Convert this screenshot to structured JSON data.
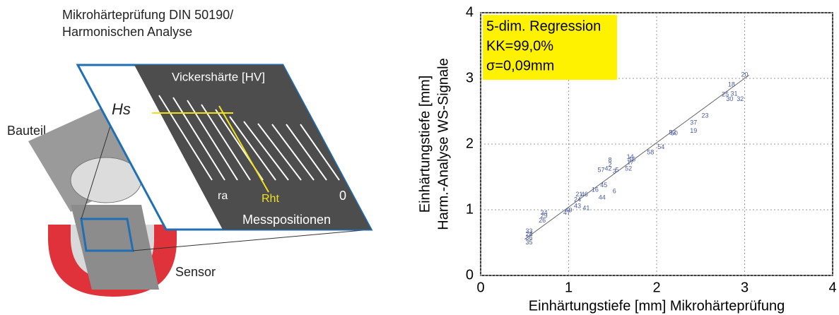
{
  "diagram": {
    "title_lines": [
      "Mikrohärteprüfung DIN 50190/",
      "Harmonischen Analyse"
    ],
    "part_label": "Bauteil",
    "sensor_label": "Sensor",
    "hardness_label": "Vickershärte [HV]",
    "hs_label": "Hs",
    "ra_label": "ra",
    "rht_label": "Rht",
    "zero_label": "0",
    "positions_label": "Messpositionen"
  },
  "chart_data": {
    "type": "scatter",
    "xlabel": "Einhärtungstiefe [mm] Mikrohärteprüfung",
    "ylabel_lines": [
      "Einhärtungstiefe [mm]",
      "Harm.-Analyse WS-Signale"
    ],
    "annotation_lines": [
      "5-dim. Regression",
      "KK=99,0%",
      "σ=0,09mm"
    ],
    "xlim": [
      0,
      4
    ],
    "ylim": [
      0,
      4
    ],
    "xticks": [
      0,
      1,
      2,
      3,
      4
    ],
    "yticks": [
      0,
      1,
      2,
      3,
      4
    ],
    "grid": true,
    "color": "#4a5aa0",
    "x": [
      3.0,
      2.85,
      2.78,
      2.88,
      2.83,
      2.95,
      2.55,
      2.42,
      2.42,
      2.18,
      2.2,
      2.05,
      1.93,
      1.7,
      1.7,
      1.72,
      1.68,
      1.47,
      1.47,
      1.37,
      1.45,
      1.52,
      1.55,
      1.4,
      1.52,
      1.38,
      1.3,
      1.18,
      1.12,
      1.1,
      1.1,
      1.2,
      1.0,
      0.98,
      0.72,
      0.72,
      0.7,
      0.55,
      0.55,
      0.55,
      0.55
    ],
    "y": [
      3.05,
      2.9,
      2.75,
      2.76,
      2.68,
      2.68,
      2.43,
      2.32,
      2.2,
      2.17,
      2.16,
      1.95,
      1.87,
      1.8,
      1.72,
      1.76,
      1.62,
      1.75,
      1.68,
      1.6,
      1.62,
      1.58,
      1.6,
      1.37,
      1.28,
      1.18,
      1.3,
      1.23,
      1.23,
      1.15,
      1.05,
      1.02,
      0.99,
      0.95,
      0.95,
      0.9,
      0.83,
      0.67,
      0.62,
      0.57,
      0.5
    ],
    "labels": [
      "20",
      "18",
      "25",
      "31",
      "30",
      "32",
      "23",
      "37",
      "19",
      "53",
      "50",
      "54",
      "58",
      "14",
      "17",
      "15",
      "52",
      "8",
      "2",
      "57",
      "42",
      "3",
      "5",
      "45",
      "6",
      "44",
      "16",
      "46",
      "21",
      "24",
      "43",
      "41",
      "49",
      "47",
      "34",
      "29",
      "26",
      "33",
      "28",
      "36",
      "35"
    ],
    "trendline": {
      "x": [
        0.5,
        3.05
      ],
      "y": [
        0.55,
        3.05
      ]
    }
  }
}
